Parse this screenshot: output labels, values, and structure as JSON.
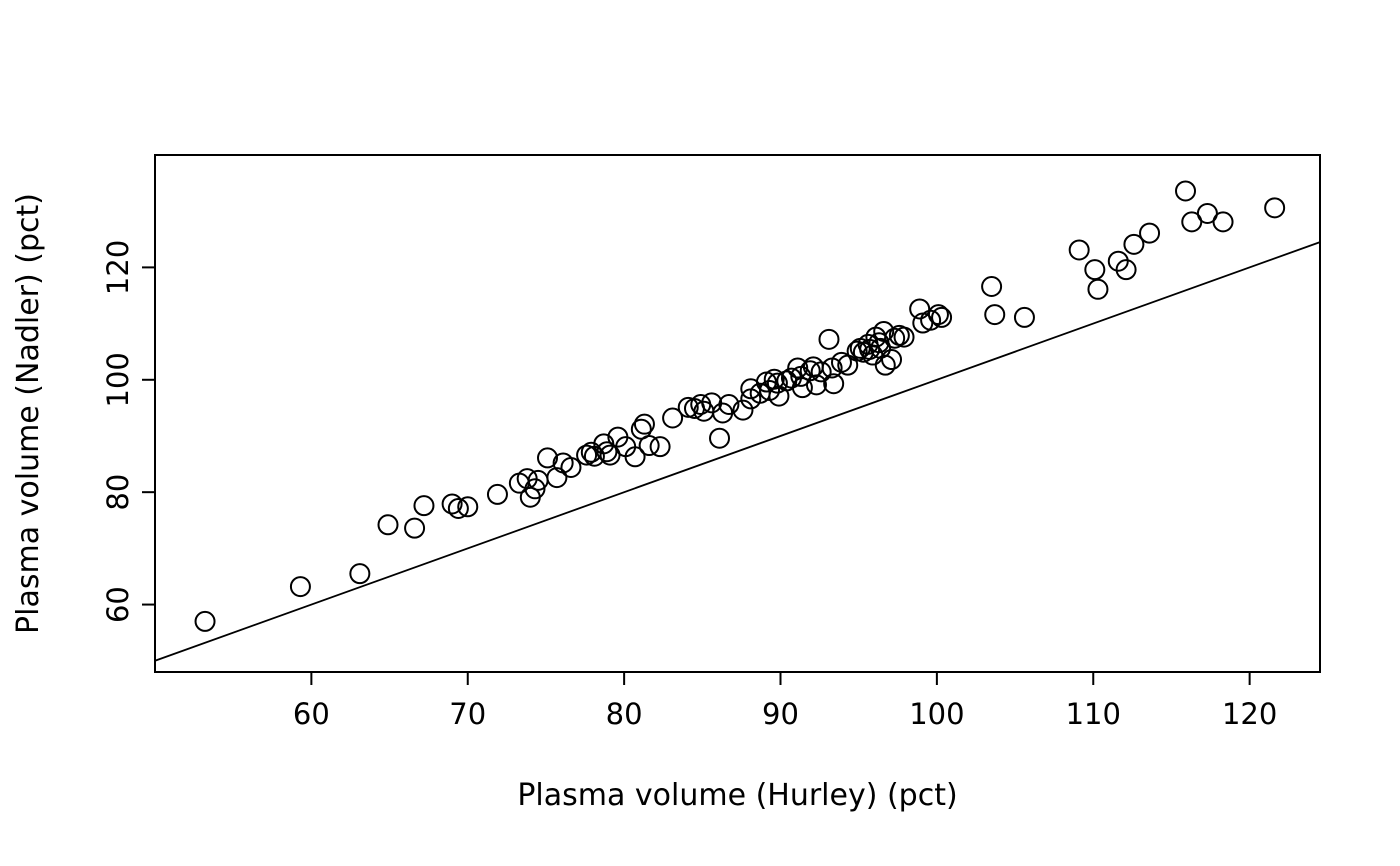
{
  "figure": {
    "background": "#ffffff",
    "foreground": "#000000"
  },
  "chart_data": {
    "type": "scatter",
    "title": "",
    "xlabel": "Plasma volume (Hurley) (pct)",
    "ylabel": "Plasma volume (Nadler) (pct)",
    "xlim": [
      50,
      124.5
    ],
    "ylim": [
      48,
      140
    ],
    "x_ticks": [
      60,
      70,
      80,
      90,
      100,
      110,
      120
    ],
    "y_ticks": [
      60,
      80,
      100,
      120
    ],
    "grid": false,
    "legend_position": "none",
    "marker": "open-circle",
    "marker_color": "#000000",
    "reference_line": {
      "slope": 1,
      "intercept": 0,
      "description": "identity line y = x"
    },
    "points": [
      [
        53.2,
        57.0
      ],
      [
        59.3,
        63.2
      ],
      [
        63.1,
        65.5
      ],
      [
        64.9,
        74.2
      ],
      [
        66.6,
        73.6
      ],
      [
        67.2,
        77.6
      ],
      [
        69.0,
        77.9
      ],
      [
        69.4,
        77.1
      ],
      [
        70.0,
        77.4
      ],
      [
        71.9,
        79.6
      ],
      [
        73.3,
        81.6
      ],
      [
        73.8,
        82.4
      ],
      [
        74.0,
        79.1
      ],
      [
        74.3,
        80.6
      ],
      [
        74.5,
        82.1
      ],
      [
        75.1,
        86.1
      ],
      [
        75.7,
        82.6
      ],
      [
        76.1,
        85.2
      ],
      [
        76.6,
        84.4
      ],
      [
        77.6,
        86.6
      ],
      [
        77.9,
        87.1
      ],
      [
        78.1,
        86.4
      ],
      [
        78.7,
        88.6
      ],
      [
        78.9,
        87.2
      ],
      [
        79.1,
        86.6
      ],
      [
        79.6,
        89.8
      ],
      [
        80.1,
        88.1
      ],
      [
        80.7,
        86.3
      ],
      [
        81.1,
        91.2
      ],
      [
        81.3,
        92.1
      ],
      [
        81.6,
        88.3
      ],
      [
        82.3,
        88.1
      ],
      [
        83.1,
        93.2
      ],
      [
        84.1,
        95.1
      ],
      [
        84.5,
        94.9
      ],
      [
        84.9,
        95.6
      ],
      [
        85.1,
        94.4
      ],
      [
        85.6,
        95.9
      ],
      [
        86.1,
        89.6
      ],
      [
        86.3,
        94.1
      ],
      [
        86.7,
        95.6
      ],
      [
        87.6,
        94.6
      ],
      [
        88.1,
        96.6
      ],
      [
        88.1,
        98.4
      ],
      [
        88.7,
        97.6
      ],
      [
        89.1,
        99.6
      ],
      [
        89.3,
        98.1
      ],
      [
        89.6,
        100.1
      ],
      [
        89.8,
        99.4
      ],
      [
        89.9,
        97.1
      ],
      [
        90.4,
        99.8
      ],
      [
        90.7,
        100.3
      ],
      [
        91.1,
        102.1
      ],
      [
        91.3,
        100.6
      ],
      [
        91.4,
        98.6
      ],
      [
        91.9,
        101.6
      ],
      [
        92.1,
        102.3
      ],
      [
        92.3,
        99.1
      ],
      [
        92.6,
        101.4
      ],
      [
        93.1,
        107.2
      ],
      [
        93.3,
        102.1
      ],
      [
        93.4,
        99.3
      ],
      [
        93.9,
        103.1
      ],
      [
        94.3,
        102.6
      ],
      [
        94.9,
        105.1
      ],
      [
        95.1,
        105.6
      ],
      [
        95.3,
        104.9
      ],
      [
        95.6,
        106.3
      ],
      [
        95.7,
        105.4
      ],
      [
        95.9,
        104.4
      ],
      [
        96.1,
        107.6
      ],
      [
        96.3,
        106.6
      ],
      [
        96.4,
        105.6
      ],
      [
        96.6,
        108.6
      ],
      [
        96.7,
        102.6
      ],
      [
        97.1,
        103.6
      ],
      [
        97.3,
        107.4
      ],
      [
        97.6,
        107.9
      ],
      [
        97.9,
        107.6
      ],
      [
        98.9,
        112.6
      ],
      [
        99.1,
        110.1
      ],
      [
        99.6,
        110.6
      ],
      [
        100.1,
        111.6
      ],
      [
        100.3,
        111.1
      ],
      [
        103.5,
        116.6
      ],
      [
        103.7,
        111.6
      ],
      [
        105.6,
        111.1
      ],
      [
        109.1,
        123.1
      ],
      [
        110.1,
        119.6
      ],
      [
        110.3,
        116.1
      ],
      [
        111.6,
        121.1
      ],
      [
        112.1,
        119.6
      ],
      [
        112.6,
        124.1
      ],
      [
        113.6,
        126.1
      ],
      [
        115.9,
        133.6
      ],
      [
        116.3,
        128.1
      ],
      [
        117.3,
        129.6
      ],
      [
        118.3,
        128.1
      ],
      [
        121.6,
        130.6
      ]
    ]
  }
}
